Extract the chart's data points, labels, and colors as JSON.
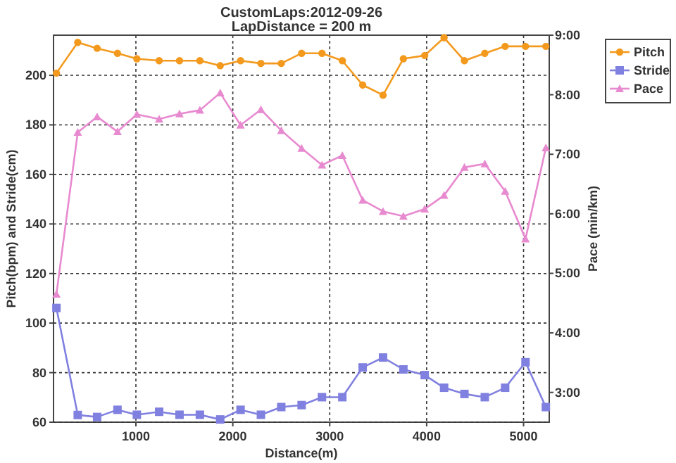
{
  "chart_data": {
    "type": "line",
    "title": "CustomLaps:2012-09-26",
    "subtitle": "LapDistance = 200 m",
    "xlabel": "Distance(m)",
    "ylabel": "Pitch(bpm) and Stride(cm)",
    "y2label": "Pace (min/km)",
    "x": [
      180,
      400,
      600,
      810,
      1010,
      1240,
      1450,
      1660,
      1870,
      2080,
      2290,
      2500,
      2710,
      2920,
      3130,
      3340,
      3550,
      3760,
      3980,
      4180,
      4390,
      4600,
      4810,
      5020,
      5230
    ],
    "series": [
      {
        "name": "Pitch",
        "color": "#f39a1e",
        "marker": "circle",
        "values": [
          200.9,
          213.3,
          210.9,
          208.9,
          206.7,
          205.9,
          205.9,
          205.9,
          203.9,
          205.9,
          204.8,
          204.8,
          208.9,
          208.9,
          205.9,
          196.1,
          192,
          206.7,
          208,
          215.2,
          205.9,
          208.9,
          211.7,
          211.7,
          211.7
        ]
      },
      {
        "name": "Stride",
        "color": "#8080e0",
        "marker": "square",
        "values": [
          106.1,
          62.9,
          62.1,
          65,
          63,
          64.2,
          63,
          63,
          61.1,
          65,
          63,
          66.1,
          66.9,
          70.1,
          70.1,
          82.1,
          86.1,
          81.3,
          79,
          73.9,
          71.4,
          70.1,
          73.9,
          84.2,
          66.1
        ]
      },
      {
        "name": "Pace",
        "color": "#e88ad0",
        "marker": "triangle",
        "axis": "y2",
        "values": [
          4.65,
          7.37,
          7.63,
          7.38,
          7.67,
          7.59,
          7.68,
          7.74,
          8.03,
          7.49,
          7.75,
          7.4,
          7.1,
          6.82,
          6.98,
          6.23,
          6.04,
          5.96,
          6.08,
          6.31,
          6.78,
          6.84,
          6.38,
          5.58,
          7.11
        ]
      }
    ],
    "xlim": [
      150,
      5265
    ],
    "xticks": [
      1000,
      2000,
      3000,
      4000,
      5000
    ],
    "ylim": [
      60,
      216.2
    ],
    "yticks": [
      60,
      80,
      100,
      120,
      140,
      160,
      180,
      200
    ],
    "y2lim": [
      2.5,
      9
    ],
    "y2ticks": [
      {
        "value": 3,
        "label": "3:00"
      },
      {
        "value": 4,
        "label": "4:00"
      },
      {
        "value": 5,
        "label": "5:00"
      },
      {
        "value": 6,
        "label": "6:00"
      },
      {
        "value": 7,
        "label": "7:00"
      },
      {
        "value": 8,
        "label": "8:00"
      },
      {
        "value": 9,
        "label": "9:00"
      }
    ],
    "grid": true,
    "legend": "top right",
    "line_style": "solid"
  }
}
